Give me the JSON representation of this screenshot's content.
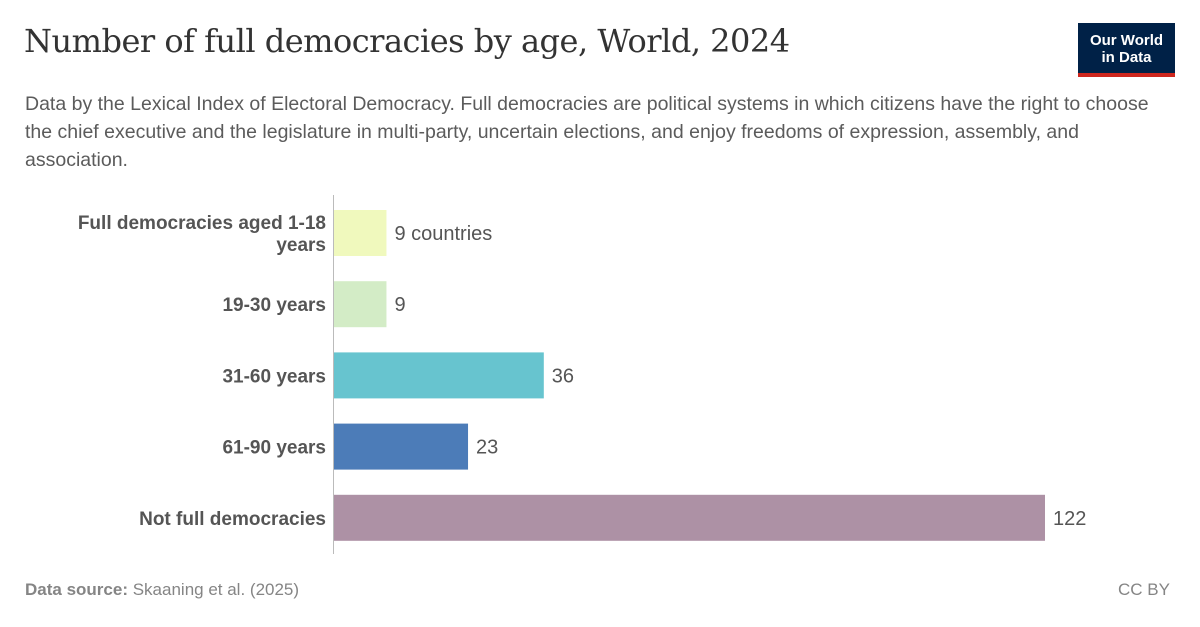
{
  "title": "Number of full democracies by age, World, 2024",
  "subtitle": "Data by the Lexical Index of Electoral Democracy. Full democracies are political systems in which citizens have the right to choose the chief executive and the legislature in multi-party, uncertain elections, and enjoy freedoms of expression, assembly, and association.",
  "logo": {
    "line1": "Our World",
    "line2": "in Data"
  },
  "footer": {
    "source_label": "Data source:",
    "source": "Skaaning et al. (2025)",
    "license": "CC BY"
  },
  "chart_data": {
    "type": "bar",
    "orientation": "horizontal",
    "categories": [
      [
        "Full democracies aged 1-18",
        "years"
      ],
      [
        "19-30 years"
      ],
      [
        "31-60 years"
      ],
      [
        "61-90 years"
      ],
      [
        "Not full democracies"
      ]
    ],
    "values": [
      9,
      9,
      36,
      23,
      122
    ],
    "value_labels": [
      "9 countries",
      "9",
      "36",
      "23",
      "122"
    ],
    "colors": [
      "#f0f9bd",
      "#d3ecc6",
      "#67c4cf",
      "#4c7cb8",
      "#ad91a5"
    ],
    "xlim": [
      0,
      122
    ],
    "grid": false
  }
}
